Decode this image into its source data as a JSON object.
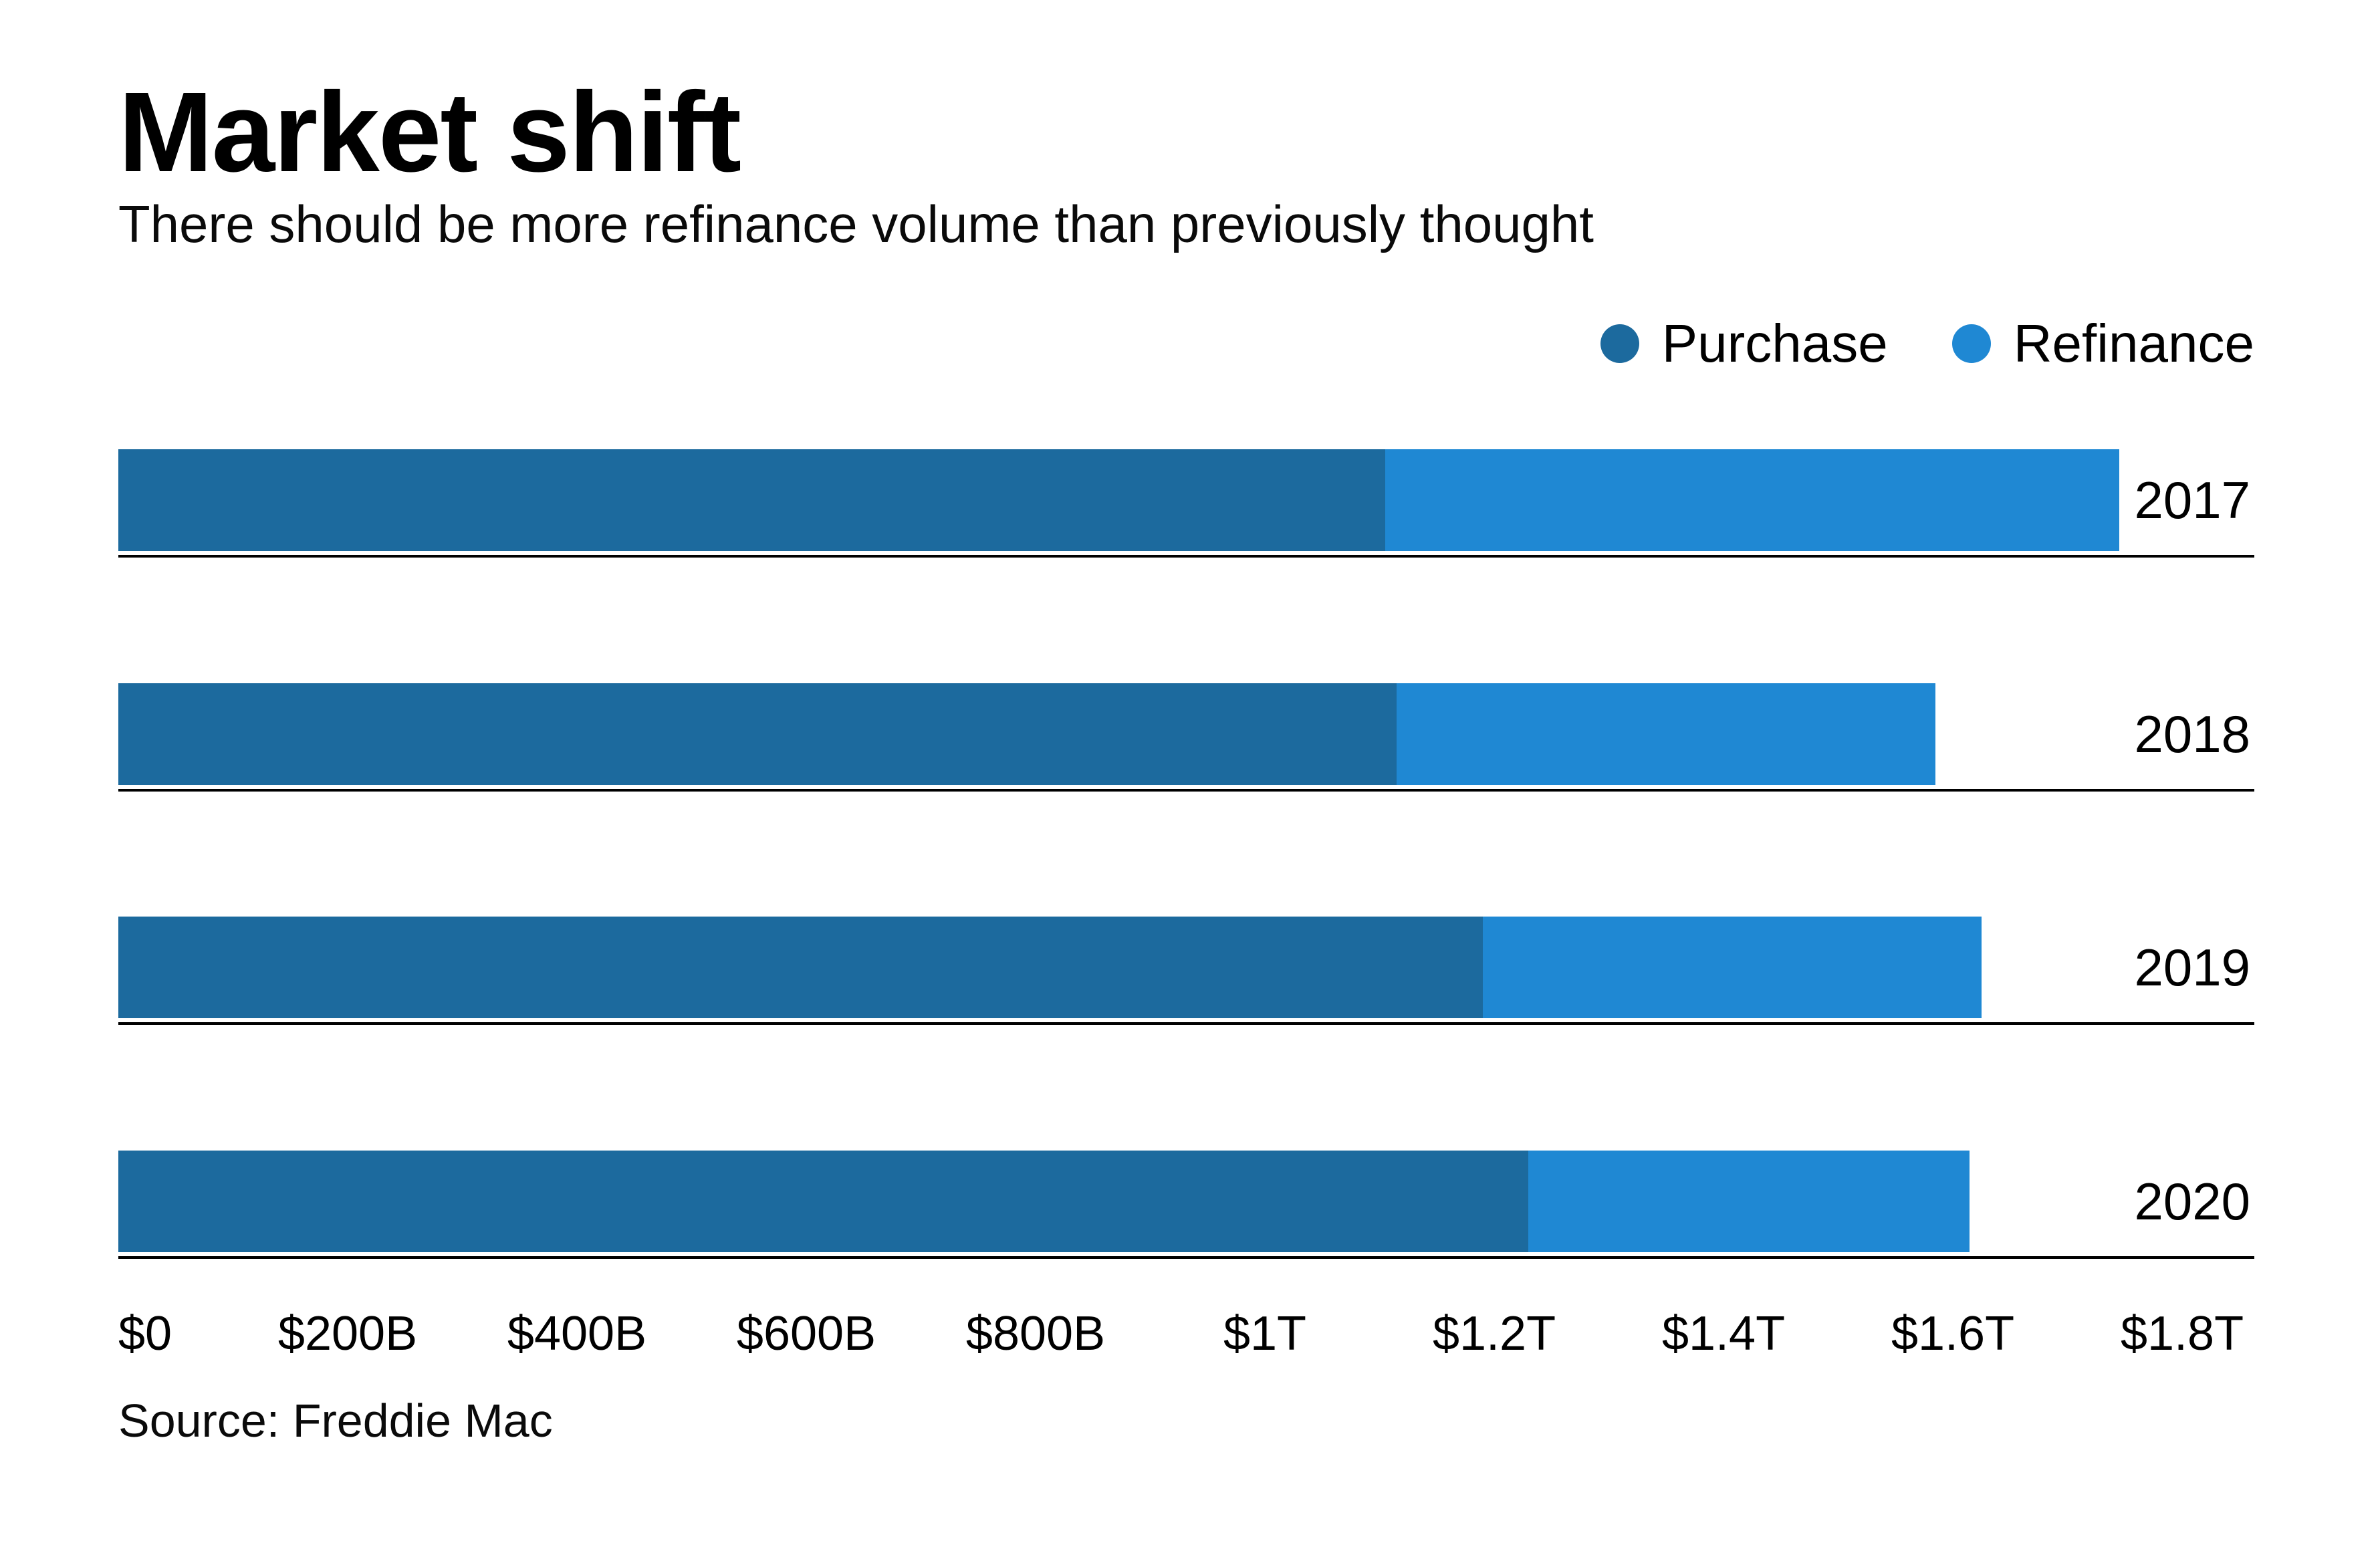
{
  "page": {
    "background": "#ffffff"
  },
  "header": {
    "title": "Market shift",
    "subtitle": "There should be more refinance volume than previously thought"
  },
  "legend": {
    "items": [
      {
        "label": "Purchase",
        "color": "#1c6a9e"
      },
      {
        "label": "Refinance",
        "color": "#1f88d3"
      }
    ]
  },
  "chart_data": {
    "type": "bar",
    "orientation": "horizontal",
    "stacked": true,
    "title": "Market shift",
    "subtitle": "There should be more refinance volume than previously thought",
    "categories": [
      "2017",
      "2018",
      "2019",
      "2020"
    ],
    "series": [
      {
        "name": "Purchase",
        "color": "#1c6a9e",
        "values": [
          1105,
          1115,
          1190,
          1230
        ]
      },
      {
        "name": "Refinance",
        "color": "#1f88d3",
        "values": [
          640,
          470,
          435,
          385
        ]
      }
    ],
    "totals": [
      1745,
      1585,
      1625,
      1615
    ],
    "units": "billions of USD",
    "xlabel": "",
    "ylabel": "",
    "x_tick_labels": [
      "$0",
      "$200B",
      "$400B",
      "$600B",
      "$800B",
      "$1T",
      "$1.2T",
      "$1.4T",
      "$1.6T",
      "$1.8T"
    ],
    "x_tick_values": [
      0,
      200,
      400,
      600,
      800,
      1000,
      1200,
      1400,
      1600,
      1800
    ],
    "xlim": [
      0,
      1863
    ],
    "grid": false,
    "legend_position": "top-right",
    "source": "Source: Freddie Mac"
  },
  "source": {
    "text": "Source: Freddie Mac"
  }
}
